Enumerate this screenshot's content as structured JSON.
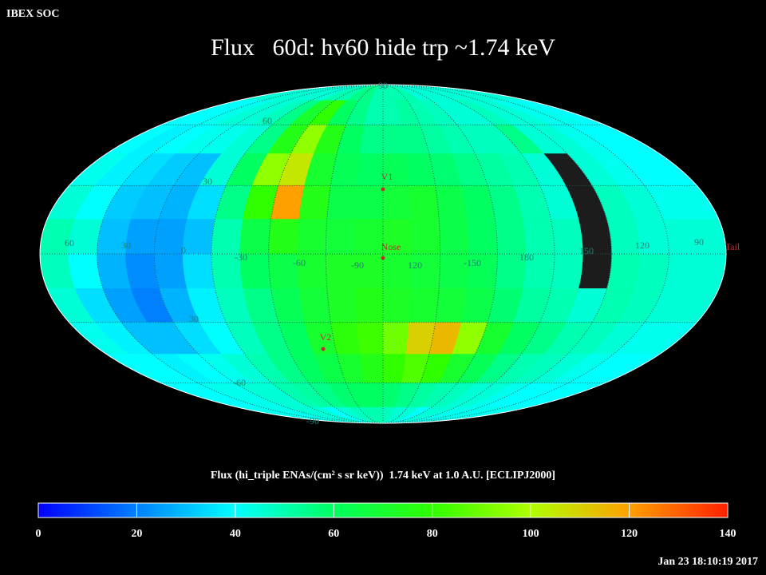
{
  "header": {
    "source": "IBEX SOC",
    "title": "Flux   60d: hv60 hide trp ~1.74 keV"
  },
  "chart_data": {
    "type": "heatmap",
    "grid_labels": {
      "longitude": [
        "60",
        "30",
        "0",
        "-30",
        "-60",
        "-90",
        "120",
        "-150",
        "180",
        "150",
        "120",
        "90"
      ],
      "latitude": [
        "90",
        "60",
        "30",
        "30",
        "-60",
        "-90"
      ]
    },
    "markers": [
      "V1",
      "Nose",
      "V2"
    ],
    "tail_label": "Tail",
    "values": [
      [
        45,
        45,
        45,
        45,
        45,
        45,
        45,
        50,
        50,
        55,
        55,
        50,
        50,
        50,
        50,
        45,
        45,
        45,
        45,
        45,
        45,
        45,
        45,
        45
      ],
      [
        40,
        40,
        42,
        45,
        45,
        48,
        55,
        70,
        80,
        60,
        55,
        50,
        50,
        52,
        50,
        48,
        45,
        45,
        48,
        45,
        45,
        42,
        42,
        40
      ],
      [
        40,
        38,
        40,
        42,
        42,
        45,
        55,
        75,
        95,
        75,
        60,
        55,
        55,
        55,
        52,
        50,
        48,
        48,
        55,
        45,
        45,
        42,
        40,
        40
      ],
      [
        42,
        38,
        35,
        32,
        30,
        45,
        60,
        95,
        105,
        70,
        62,
        60,
        62,
        60,
        58,
        55,
        52,
        50,
        45,
        null,
        45,
        42,
        40,
        40
      ],
      [
        45,
        40,
        32,
        30,
        28,
        35,
        55,
        80,
        120,
        75,
        65,
        65,
        68,
        70,
        65,
        60,
        55,
        50,
        45,
        null,
        48,
        45,
        42,
        42
      ],
      [
        50,
        45,
        30,
        25,
        25,
        30,
        50,
        65,
        75,
        70,
        68,
        70,
        72,
        70,
        65,
        60,
        55,
        50,
        48,
        null,
        48,
        45,
        45,
        45
      ],
      [
        48,
        40,
        28,
        22,
        25,
        35,
        50,
        60,
        65,
        70,
        72,
        72,
        70,
        68,
        65,
        62,
        55,
        50,
        48,
        null,
        50,
        48,
        45,
        45
      ],
      [
        45,
        35,
        25,
        20,
        28,
        38,
        48,
        55,
        62,
        68,
        72,
        75,
        72,
        70,
        68,
        65,
        58,
        52,
        50,
        45,
        50,
        48,
        45,
        45
      ],
      [
        42,
        38,
        30,
        30,
        35,
        40,
        48,
        55,
        60,
        70,
        78,
        82,
        90,
        110,
        115,
        95,
        70,
        60,
        55,
        50,
        48,
        45,
        42,
        42
      ],
      [
        40,
        40,
        38,
        40,
        42,
        45,
        50,
        55,
        60,
        65,
        70,
        75,
        80,
        85,
        80,
        70,
        62,
        55,
        50,
        48,
        45,
        42,
        40,
        40
      ],
      [
        40,
        40,
        42,
        42,
        45,
        45,
        50,
        52,
        55,
        58,
        60,
        60,
        58,
        55,
        52,
        50,
        48,
        45,
        45,
        42,
        40,
        40,
        40,
        40
      ],
      [
        42,
        42,
        42,
        42,
        45,
        45,
        45,
        40,
        45,
        48,
        50,
        50,
        48,
        45,
        45,
        40,
        45,
        45,
        42,
        42,
        42,
        42,
        42,
        42
      ]
    ],
    "no_data_color": "#1c1c1c",
    "colorbar": {
      "label": "Flux (hi_triple ENAs/(cm² s sr keV))  1.74 keV at 1.0 A.U. [ECLIPJ2000]",
      "clim": [
        0,
        140
      ],
      "ticks": [
        0,
        20,
        40,
        60,
        80,
        100,
        120,
        140
      ],
      "colormap": [
        "#0000ff",
        "#0080ff",
        "#00ffff",
        "#00ff60",
        "#30ff00",
        "#b0ff00",
        "#ffa000",
        "#ff2000"
      ]
    }
  },
  "footer": {
    "timestamp": "Jan 23 18:10:19 2017"
  }
}
